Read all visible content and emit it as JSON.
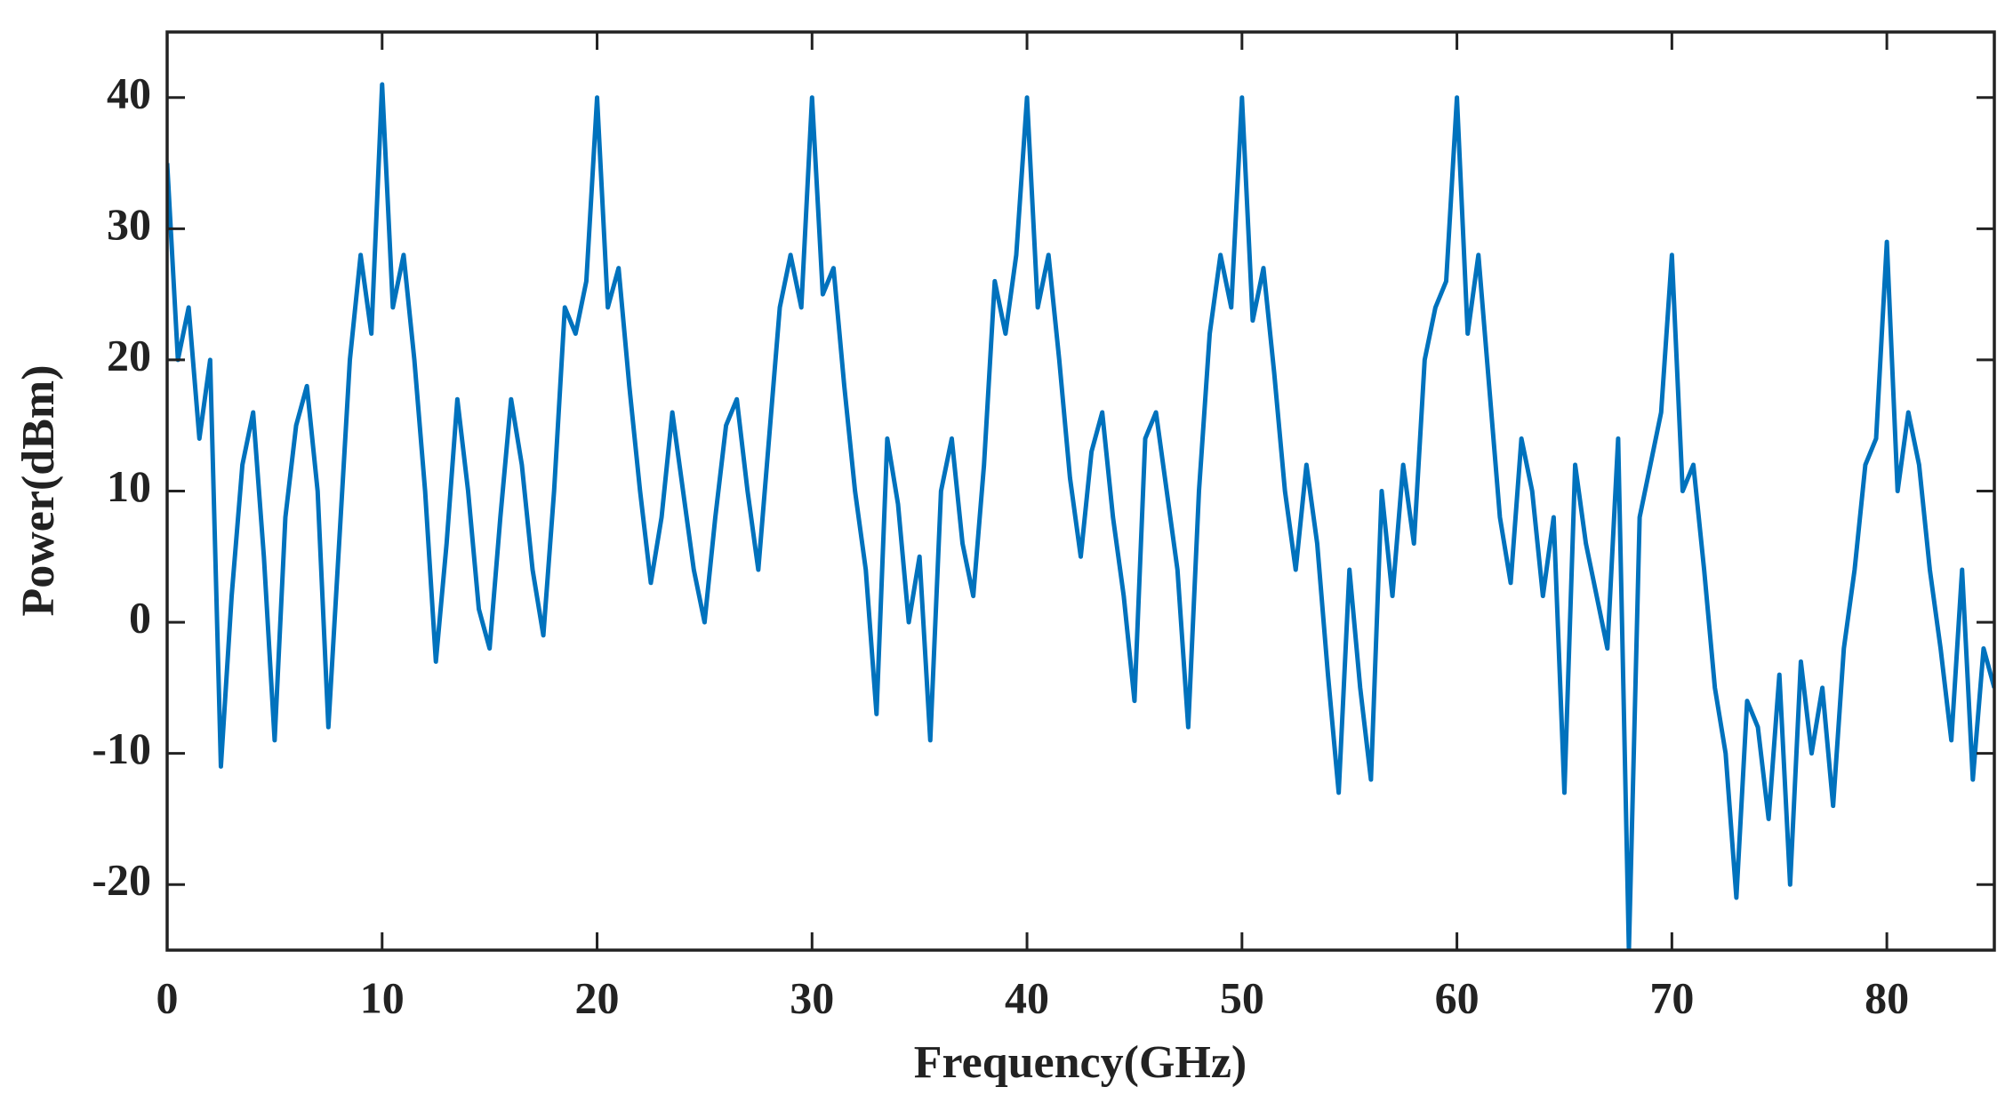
{
  "chart_data": {
    "type": "line",
    "x_label": "Frequency(GHz)",
    "y_label": "Power(dBm)",
    "xlim": [
      0,
      85
    ],
    "ylim": [
      -25,
      45
    ],
    "xticks": [
      0,
      10,
      20,
      30,
      40,
      50,
      60,
      70,
      80
    ],
    "yticks": [
      -20,
      -10,
      0,
      10,
      20,
      30,
      40
    ],
    "x": [
      0,
      0.5,
      1,
      1.5,
      2,
      2.5,
      3,
      3.5,
      4,
      4.5,
      5,
      5.5,
      6,
      6.5,
      7,
      7.5,
      8,
      8.5,
      9,
      9.5,
      10,
      10.5,
      11,
      11.5,
      12,
      12.5,
      13,
      13.5,
      14,
      14.5,
      15,
      15.5,
      16,
      16.5,
      17,
      17.5,
      18,
      18.5,
      19,
      19.5,
      20,
      20.5,
      21,
      21.5,
      22,
      22.5,
      23,
      23.5,
      24,
      24.5,
      25,
      25.5,
      26,
      26.5,
      27,
      27.5,
      28,
      28.5,
      29,
      29.5,
      30,
      30.5,
      31,
      31.5,
      32,
      32.5,
      33,
      33.5,
      34,
      34.5,
      35,
      35.5,
      36,
      36.5,
      37,
      37.5,
      38,
      38.5,
      39,
      39.5,
      40,
      40.5,
      41,
      41.5,
      42,
      42.5,
      43,
      43.5,
      44,
      44.5,
      45,
      45.5,
      46,
      46.5,
      47,
      47.5,
      48,
      48.5,
      49,
      49.5,
      50,
      50.5,
      51,
      51.5,
      52,
      52.5,
      53,
      53.5,
      54,
      54.5,
      55,
      55.5,
      56,
      56.5,
      57,
      57.5,
      58,
      58.5,
      59,
      59.5,
      60,
      60.5,
      61,
      61.5,
      62,
      62.5,
      63,
      63.5,
      64,
      64.5,
      65,
      65.5,
      66,
      66.5,
      67,
      67.5,
      68,
      68.5,
      69,
      69.5,
      70,
      70.5,
      71,
      71.5,
      72,
      72.5,
      73,
      73.5,
      74,
      74.5,
      75,
      75.5,
      76,
      76.5,
      77,
      77.5,
      78,
      78.5,
      79,
      79.5,
      80,
      80.5,
      81,
      81.5,
      82,
      82.5,
      83,
      83.5,
      84,
      84.5,
      85
    ],
    "series": [
      {
        "color": "#0072bd",
        "values": [
          35,
          20,
          24,
          14,
          20,
          -11,
          2,
          12,
          16,
          5,
          -9,
          8,
          15,
          18,
          10,
          -8,
          6,
          20,
          28,
          22,
          41,
          24,
          28,
          20,
          10,
          -3,
          6,
          17,
          10,
          1,
          -2,
          8,
          17,
          12,
          4,
          -1,
          10,
          24,
          22,
          26,
          40,
          24,
          27,
          18,
          10,
          3,
          8,
          16,
          10,
          4,
          0,
          8,
          15,
          17,
          10,
          4,
          14,
          24,
          28,
          24,
          40,
          25,
          27,
          18,
          10,
          4,
          -7,
          14,
          9,
          0,
          5,
          -9,
          10,
          14,
          6,
          2,
          12,
          26,
          22,
          28,
          40,
          24,
          28,
          20,
          11,
          5,
          13,
          16,
          8,
          2,
          -6,
          14,
          16,
          10,
          4,
          -8,
          10,
          22,
          28,
          24,
          40,
          23,
          27,
          19,
          10,
          4,
          12,
          6,
          -4,
          -13,
          4,
          -5,
          -12,
          10,
          2,
          12,
          6,
          20,
          24,
          26,
          40,
          22,
          28,
          18,
          8,
          3,
          14,
          10,
          2,
          8,
          -13,
          12,
          6,
          2,
          -2,
          14,
          -25,
          8,
          12,
          16,
          28,
          10,
          12,
          4,
          -5,
          -10,
          -21,
          -6,
          -8,
          -15,
          -4,
          -20,
          -3,
          -10,
          -5,
          -14,
          -2,
          4,
          12,
          14,
          29,
          10,
          16,
          12,
          4,
          -2,
          -9,
          4,
          -12,
          -2,
          -5
        ]
      }
    ]
  }
}
